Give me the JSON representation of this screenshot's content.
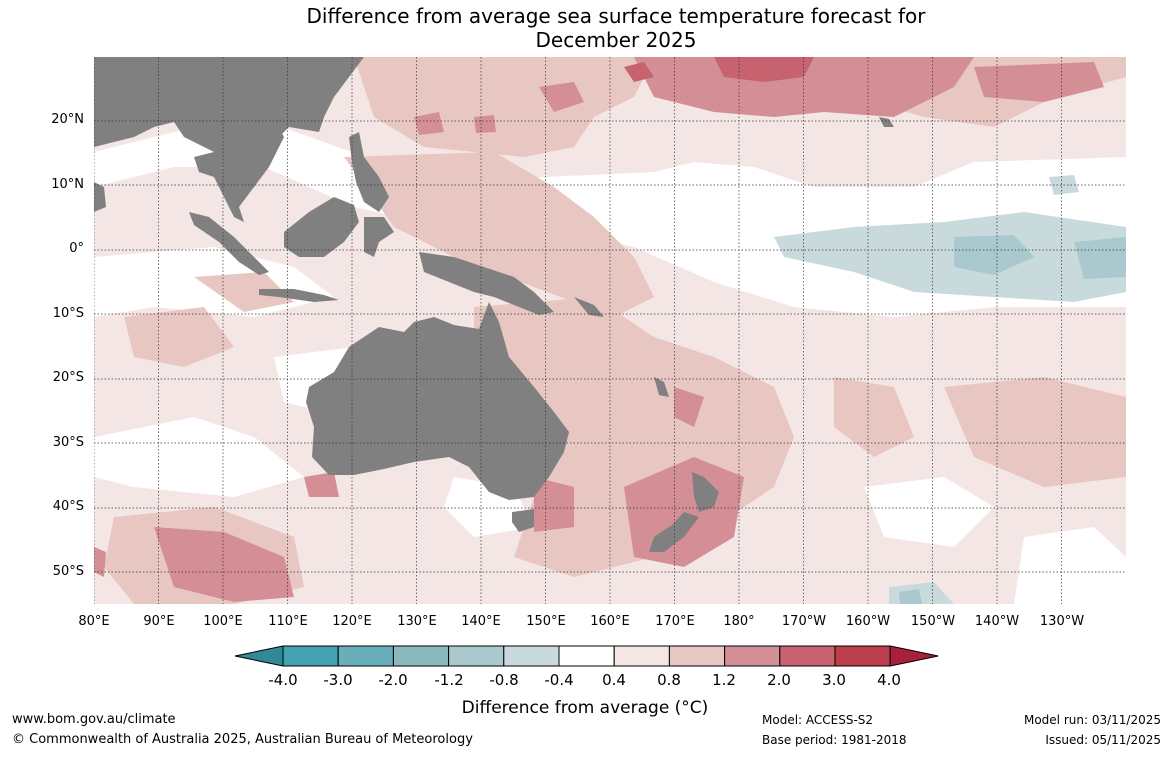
{
  "title": {
    "line1": "Difference from average sea surface temperature forecast for",
    "line2": "December 2025"
  },
  "map": {
    "lat_labels": [
      "20°N",
      "10°N",
      "0°",
      "10°S",
      "20°S",
      "30°S",
      "40°S",
      "50°S"
    ],
    "lon_labels": [
      "80°E",
      "90°E",
      "100°E",
      "110°E",
      "120°E",
      "130°E",
      "140°E",
      "150°E",
      "160°E",
      "170°E",
      "180°",
      "170°W",
      "160°W",
      "150°W",
      "140°W",
      "130°W"
    ],
    "land_color": "#808080"
  },
  "colorbar": {
    "labels": [
      "-4.0",
      "-3.0",
      "-2.0",
      "-1.2",
      "-0.8",
      "-0.4",
      "0.4",
      "0.8",
      "1.2",
      "2.0",
      "3.0",
      "4.0"
    ],
    "colors": [
      "#2f8a96",
      "#44a1b0",
      "#69aebb",
      "#8cb8c0",
      "#a9c9ce",
      "#c9dadd",
      "#ffffff",
      "#f4e6e4",
      "#e8c6c2",
      "#d48e96",
      "#c6636f",
      "#bd3f4e",
      "#a8203a"
    ],
    "title": "Difference from average (°C)"
  },
  "footer": {
    "website": "www.bom.gov.au/climate",
    "copyright": "© Commonwealth of Australia 2025, Australian Bureau of Meteorology",
    "model": "Model: ACCESS-S2",
    "base_period": "Base period: 1981-2018",
    "model_run": "Model run: 03/11/2025",
    "issued": "Issued: 05/11/2025"
  }
}
